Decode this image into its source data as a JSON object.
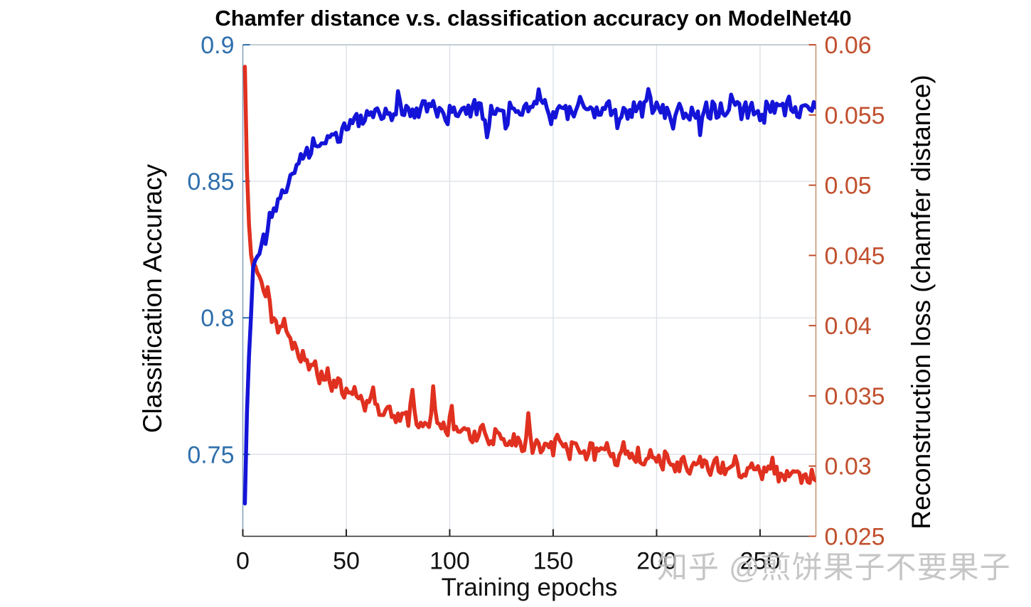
{
  "watermark": {
    "text": "知乎 @煎饼果子不要果子"
  },
  "chart_data": {
    "type": "line",
    "title": "Chamfer distance v.s. classification accuracy on ModelNet40",
    "xlabel": "Training epochs",
    "xlim": [
      0,
      277
    ],
    "x_ticks": [
      0,
      50,
      100,
      150,
      200,
      250
    ],
    "x_tick_labels": [
      "0",
      "50",
      "100",
      "150",
      "200",
      "250"
    ],
    "grid": true,
    "grid_color": "#dde2e8",
    "x_tick_color": "#111111",
    "left_axis": {
      "label": "Classification Accuracy",
      "color": "#2f6fad",
      "ylim": [
        0.72,
        0.9
      ],
      "ticks": [
        0.75,
        0.8,
        0.85,
        0.9
      ],
      "tick_labels": [
        "0.75",
        "0.8",
        "0.85",
        "0.9"
      ]
    },
    "right_axis": {
      "label": "Reconstruction loss (chamfer distance)",
      "color": "#c1502e",
      "ylim": [
        0.025,
        0.06
      ],
      "ticks": [
        0.025,
        0.03,
        0.035,
        0.04,
        0.045,
        0.05,
        0.055,
        0.06
      ],
      "tick_labels": [
        "0.025",
        "0.03",
        "0.035",
        "0.04",
        "0.045",
        "0.05",
        "0.055",
        "0.06"
      ]
    },
    "series": [
      {
        "name": "reconstruction-loss",
        "axis": "right",
        "color": "#e0301f",
        "line_width": 5.5,
        "seed": 3,
        "anchors": [
          [
            1,
            0.0585
          ],
          [
            2,
            0.051
          ],
          [
            3,
            0.0472
          ],
          [
            4,
            0.0452
          ],
          [
            5,
            0.0443
          ],
          [
            6,
            0.0442
          ],
          [
            7,
            0.044
          ],
          [
            8,
            0.0436
          ],
          [
            9,
            0.043
          ],
          [
            10,
            0.0425
          ],
          [
            12,
            0.0414
          ],
          [
            14,
            0.0408
          ],
          [
            16,
            0.0401
          ],
          [
            18,
            0.0398
          ],
          [
            20,
            0.0391
          ],
          [
            22,
            0.0389
          ],
          [
            25,
            0.0383
          ],
          [
            28,
            0.0372
          ],
          [
            31,
            0.0371
          ],
          [
            34,
            0.0367
          ],
          [
            37,
            0.0364
          ],
          [
            40,
            0.0359
          ],
          [
            44,
            0.0356
          ],
          [
            48,
            0.0352
          ],
          [
            52,
            0.035
          ],
          [
            56,
            0.0346
          ],
          [
            60,
            0.0344
          ],
          [
            65,
            0.0341
          ],
          [
            70,
            0.0338
          ],
          [
            75,
            0.0335
          ],
          [
            80,
            0.0333
          ],
          [
            85,
            0.0331
          ],
          [
            90,
            0.0329
          ],
          [
            95,
            0.0327
          ],
          [
            100,
            0.0325
          ],
          [
            105,
            0.0323
          ],
          [
            110,
            0.0321
          ],
          [
            115,
            0.032
          ],
          [
            120,
            0.0318
          ],
          [
            125,
            0.0317
          ],
          [
            130,
            0.0316
          ],
          [
            135,
            0.0315
          ],
          [
            140,
            0.0314
          ],
          [
            145,
            0.0313
          ],
          [
            150,
            0.0312
          ],
          [
            155,
            0.0311
          ],
          [
            160,
            0.031
          ],
          [
            165,
            0.0309
          ],
          [
            170,
            0.0308
          ],
          [
            175,
            0.0307
          ],
          [
            180,
            0.0306
          ],
          [
            185,
            0.0305
          ],
          [
            190,
            0.0305
          ],
          [
            195,
            0.0304
          ],
          [
            200,
            0.0303
          ],
          [
            205,
            0.0302
          ],
          [
            210,
            0.0301
          ],
          [
            215,
            0.03
          ],
          [
            220,
            0.03
          ],
          [
            225,
            0.0299
          ],
          [
            230,
            0.0298
          ],
          [
            235,
            0.0297
          ],
          [
            240,
            0.0297
          ],
          [
            245,
            0.0296
          ],
          [
            250,
            0.0296
          ],
          [
            255,
            0.0295
          ],
          [
            260,
            0.0294
          ],
          [
            265,
            0.0294
          ],
          [
            270,
            0.0293
          ],
          [
            277,
            0.0292
          ]
        ],
        "noise": [
          {
            "from": 1,
            "to": 6,
            "amp": 0.00018
          },
          {
            "from": 7,
            "to": 277,
            "amp": 0.00055
          }
        ],
        "spikes": {
          "12": 0.0008,
          "20": 0.0009,
          "29": 0.0012,
          "35": 0.001,
          "41": 0.0012,
          "47": 0.0009,
          "54": 0.0008,
          "63": 0.001,
          "70": 0.0009,
          "82": 0.0024,
          "92": 0.0026,
          "101": 0.0014,
          "108": 0.0009,
          "116": 0.0008,
          "123": 0.0011,
          "131": 0.0009,
          "138": 0.002,
          "146": 0.0008,
          "152": 0.0012,
          "160": 0.0007,
          "168": 0.0008,
          "176": 0.0015,
          "184": 0.0007,
          "191": 0.0008,
          "198": 0.0007,
          "205": 0.001,
          "213": 0.0007,
          "221": 0.0008,
          "229": 0.0006,
          "238": 0.0009,
          "247": 0.0007,
          "256": 0.0006,
          "265": 0.0005
        }
      },
      {
        "name": "classification-accuracy",
        "axis": "left",
        "color": "#1414d8",
        "line_width": 5.5,
        "seed": 7,
        "anchors": [
          [
            1,
            0.732
          ],
          [
            2,
            0.765
          ],
          [
            3,
            0.786
          ],
          [
            4,
            0.801
          ],
          [
            5,
            0.817
          ],
          [
            6,
            0.8205
          ],
          [
            7,
            0.8235
          ],
          [
            8,
            0.822
          ],
          [
            9,
            0.8265
          ],
          [
            10,
            0.8295
          ],
          [
            11,
            0.828
          ],
          [
            12,
            0.8325
          ],
          [
            13,
            0.839
          ],
          [
            14,
            0.837
          ],
          [
            15,
            0.841
          ],
          [
            16,
            0.8398
          ],
          [
            17,
            0.8432
          ],
          [
            18,
            0.8445
          ],
          [
            19,
            0.846
          ],
          [
            20,
            0.8448
          ],
          [
            22,
            0.849
          ],
          [
            24,
            0.8525
          ],
          [
            26,
            0.8555
          ],
          [
            28,
            0.859
          ],
          [
            30,
            0.8615
          ],
          [
            32,
            0.8605
          ],
          [
            34,
            0.8635
          ],
          [
            36,
            0.8645
          ],
          [
            38,
            0.863
          ],
          [
            40,
            0.865
          ],
          [
            42,
            0.8645
          ],
          [
            44,
            0.8665
          ],
          [
            46,
            0.868
          ],
          [
            48,
            0.8695
          ],
          [
            50,
            0.871
          ],
          [
            53,
            0.8715
          ],
          [
            56,
            0.8725
          ],
          [
            60,
            0.8735
          ],
          [
            65,
            0.8745
          ],
          [
            70,
            0.8755
          ],
          [
            80,
            0.876
          ],
          [
            90,
            0.8765
          ],
          [
            100,
            0.8755
          ],
          [
            110,
            0.876
          ],
          [
            120,
            0.8748
          ],
          [
            130,
            0.8763
          ],
          [
            143,
            0.8775
          ],
          [
            155,
            0.8753
          ],
          [
            170,
            0.8763
          ],
          [
            185,
            0.8758
          ],
          [
            200,
            0.8763
          ],
          [
            215,
            0.8753
          ],
          [
            230,
            0.8763
          ],
          [
            245,
            0.8758
          ],
          [
            260,
            0.8763
          ],
          [
            270,
            0.8758
          ],
          [
            277,
            0.8768
          ]
        ],
        "noise": [
          {
            "from": 1,
            "to": 4,
            "amp": 0
          },
          {
            "from": 5,
            "to": 27,
            "amp": 0.0016
          },
          {
            "from": 28,
            "to": 44,
            "amp": 0.0024
          },
          {
            "from": 45,
            "to": 277,
            "amp": 0.0033
          }
        ],
        "spikes": {
          "47": -0.004,
          "75": 0.004,
          "98": -0.0065,
          "112": 0.004,
          "118": -0.0085,
          "127": -0.005,
          "143": 0.0055,
          "149": -0.004,
          "163": 0.0045,
          "170": -0.0045,
          "181": -0.004,
          "196": 0.005,
          "208": -0.004,
          "221": -0.0055,
          "236": 0.0045,
          "251": -0.0035,
          "264": 0.003
        }
      }
    ]
  }
}
